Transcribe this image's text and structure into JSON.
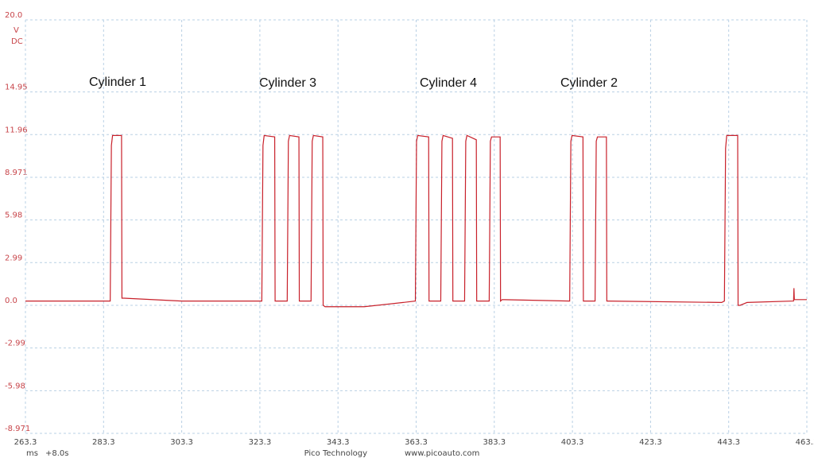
{
  "chart_data": {
    "type": "line",
    "annotations": [
      "Cylinder 1",
      "Cylinder 3",
      "Cylinder 4",
      "Cylinder 2"
    ],
    "y_unit": "V",
    "coupling": "DC",
    "x_unit": "ms",
    "x_offset": "+8.0s",
    "footer": [
      "Pico Technology",
      "www.picoauto.com"
    ],
    "xlim": [
      263.3,
      463.3
    ],
    "xticks": [
      263.3,
      283.3,
      303.3,
      323.3,
      343.3,
      363.3,
      383.3,
      403.3,
      423.3,
      443.3,
      463.3
    ],
    "ylim": [
      -8.971,
      20.0
    ],
    "yticks": [
      {
        "value": 20,
        "label": "20.0"
      },
      14.95,
      11.96,
      8.971,
      5.98,
      2.99,
      {
        "value": 0,
        "label": "0.0"
      },
      -2.99,
      -5.98,
      -8.971
    ],
    "grid": true,
    "x": [
      263.3,
      285.0,
      285.3,
      285.6,
      287.9,
      288.0,
      288.5,
      303.3,
      323.8,
      324.1,
      324.4,
      327.1,
      327.2,
      327.6,
      330.3,
      330.6,
      330.9,
      333.3,
      333.4,
      333.8,
      336.4,
      336.7,
      337.0,
      339.4,
      339.5,
      340.0,
      350.0,
      360.0,
      363.1,
      363.4,
      363.7,
      366.5,
      366.6,
      367.0,
      369.6,
      369.9,
      370.2,
      372.6,
      372.7,
      373.1,
      375.7,
      376.0,
      376.3,
      378.7,
      378.8,
      379.2,
      382.0,
      382.3,
      382.6,
      384.8,
      384.9,
      385.3,
      402.6,
      402.9,
      403.2,
      406.0,
      406.1,
      406.5,
      409.1,
      409.4,
      409.7,
      412.0,
      412.1,
      412.5,
      441.5,
      442.2,
      442.5,
      442.8,
      445.6,
      445.7,
      446.2,
      448.0,
      459.9,
      460.0,
      460.1,
      463.3
    ],
    "series": [
      {
        "color": "#c8202a",
        "values": [
          0.3,
          0.3,
          11.2,
          11.9,
          11.9,
          0.5,
          0.5,
          0.3,
          0.3,
          11.2,
          11.9,
          11.8,
          0.3,
          0.3,
          0.3,
          11.5,
          11.9,
          11.8,
          0.3,
          0.3,
          0.3,
          11.5,
          11.9,
          11.8,
          0.0,
          -0.1,
          -0.1,
          0.2,
          0.3,
          11.5,
          11.9,
          11.8,
          0.3,
          0.3,
          0.3,
          11.5,
          11.9,
          11.7,
          0.3,
          0.3,
          0.3,
          11.5,
          11.9,
          11.6,
          0.3,
          0.3,
          0.3,
          11.5,
          11.8,
          11.8,
          0.3,
          0.4,
          0.3,
          11.5,
          11.9,
          11.8,
          0.3,
          0.3,
          0.3,
          11.5,
          11.8,
          11.8,
          0.3,
          0.3,
          0.2,
          0.3,
          11.0,
          11.9,
          11.9,
          0.0,
          0.0,
          0.2,
          0.3,
          1.2,
          0.4,
          0.4
        ]
      }
    ]
  }
}
